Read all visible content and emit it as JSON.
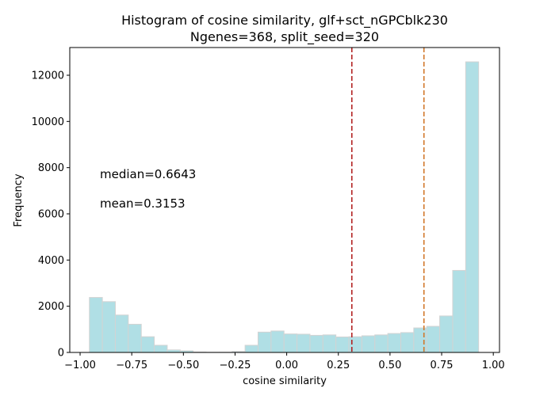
{
  "chart_data": {
    "type": "bar",
    "title": "Histogram of cosine similarity, glf+sct_nGPCblk230",
    "subtitle": "Ngenes=368, split_seed=320",
    "xlabel": "cosine similarity",
    "ylabel": "Frequency",
    "xlim": [
      -1.05,
      1.03
    ],
    "ylim": [
      0,
      13200
    ],
    "xticks": [
      -1.0,
      -0.75,
      -0.5,
      -0.25,
      0.0,
      0.25,
      0.5,
      0.75,
      1.0
    ],
    "xtick_labels": [
      "−1.00",
      "−0.75",
      "−0.50",
      "−0.25",
      "0.00",
      "0.25",
      "0.50",
      "0.75",
      "1.00"
    ],
    "yticks": [
      0,
      2000,
      4000,
      6000,
      8000,
      10000,
      12000
    ],
    "ytick_labels": [
      "0",
      "2000",
      "4000",
      "6000",
      "8000",
      "10000",
      "12000"
    ],
    "bin_start": -0.955,
    "bin_width": 0.0628,
    "values": [
      2380,
      2200,
      1620,
      1220,
      680,
      310,
      110,
      70,
      20,
      10,
      10,
      40,
      310,
      880,
      930,
      800,
      790,
      740,
      760,
      670,
      680,
      720,
      760,
      820,
      860,
      1060,
      1130,
      1580,
      3550,
      12580
    ],
    "bar_color": "#b0dfe5",
    "bar_edge_color": "#d3d3d3",
    "mean": 0.3153,
    "median": 0.6643,
    "mean_color": "#b22222",
    "median_color": "#d2782a",
    "annotations": {
      "median_label": "median=0.6643",
      "mean_label": "mean=0.3153"
    }
  }
}
